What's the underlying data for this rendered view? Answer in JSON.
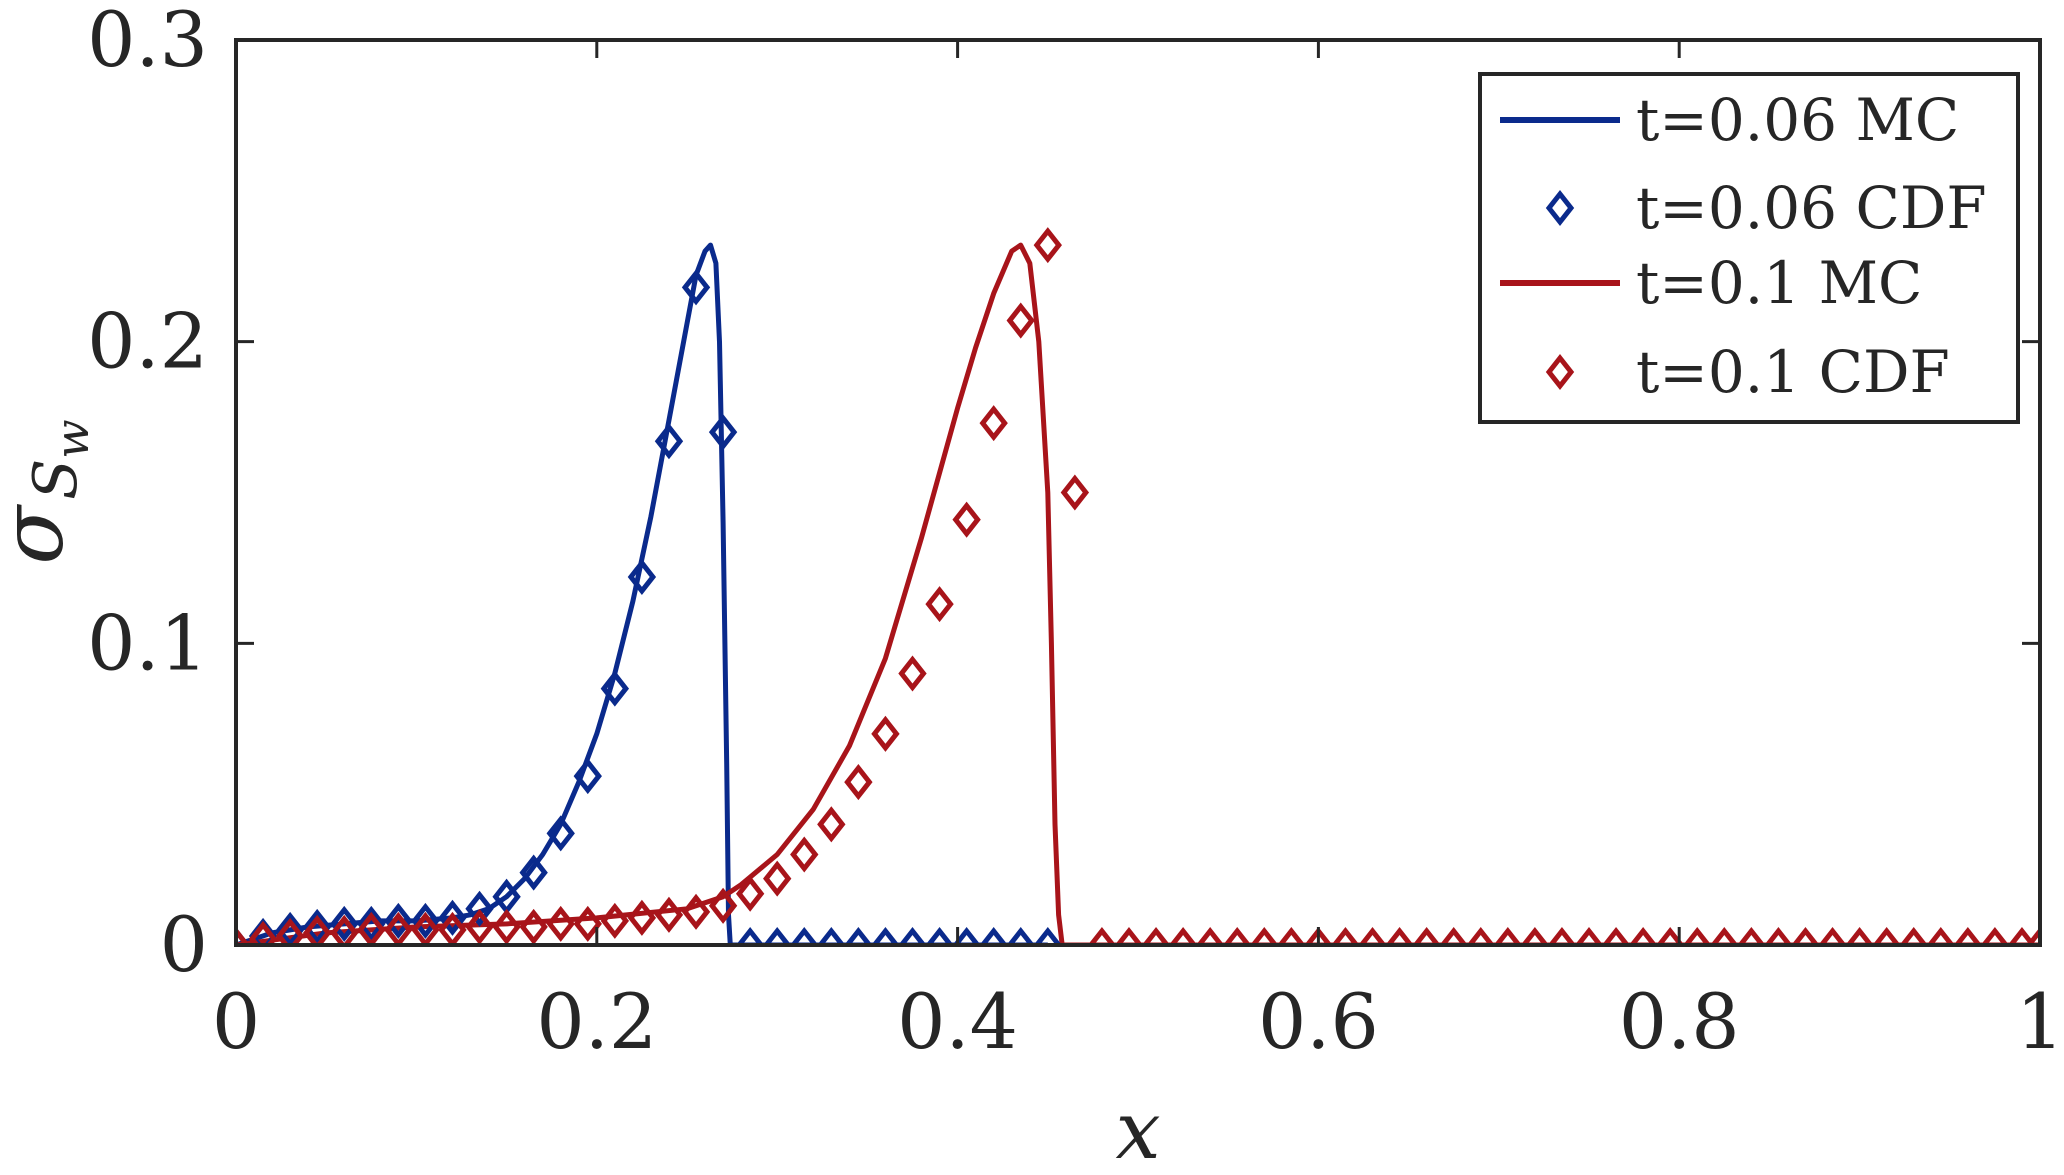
{
  "chart_data": {
    "type": "line",
    "title": "",
    "xlabel": "x",
    "ylabel_main": "σ",
    "ylabel_sub": "S",
    "ylabel_subsub": "w",
    "xlim": [
      0,
      1
    ],
    "ylim": [
      0,
      0.3
    ],
    "xticks": [
      "0",
      "0.2",
      "0.4",
      "0.6",
      "0.8",
      "1"
    ],
    "xtick_values": [
      0,
      0.2,
      0.4,
      0.6,
      0.8,
      1
    ],
    "yticks": [
      "0",
      "0.1",
      "0.2",
      "0.3"
    ],
    "ytick_values": [
      0,
      0.1,
      0.2,
      0.3
    ],
    "grid": false,
    "legend_position": "top-right",
    "colors": {
      "blue": "#0a2a8c",
      "red": "#a8141a"
    },
    "series": [
      {
        "name": "t=0.06 MC",
        "style": "line",
        "color": "#0a2a8c",
        "x": [
          0,
          0.02,
          0.04,
          0.06,
          0.08,
          0.1,
          0.12,
          0.13,
          0.14,
          0.15,
          0.16,
          0.17,
          0.18,
          0.19,
          0.2,
          0.21,
          0.22,
          0.23,
          0.24,
          0.25,
          0.255,
          0.26,
          0.263,
          0.266,
          0.268,
          0.27,
          0.272,
          0.273,
          0.274,
          0.3,
          0.35,
          0.4,
          0.45
        ],
        "y": [
          0,
          0.004,
          0.006,
          0.007,
          0.008,
          0.008,
          0.009,
          0.01,
          0.012,
          0.016,
          0.022,
          0.03,
          0.04,
          0.054,
          0.07,
          0.09,
          0.114,
          0.142,
          0.174,
          0.206,
          0.222,
          0.23,
          0.232,
          0.226,
          0.2,
          0.14,
          0.06,
          0.01,
          0,
          0,
          0,
          0,
          0
        ]
      },
      {
        "name": "t=0.06 CDF",
        "style": "marker",
        "color": "#0a2a8c",
        "x": [
          0,
          0.015,
          0.03,
          0.045,
          0.06,
          0.075,
          0.09,
          0.105,
          0.12,
          0.135,
          0.15,
          0.165,
          0.18,
          0.195,
          0.21,
          0.225,
          0.24,
          0.255,
          0.27,
          0.285,
          0.3,
          0.315,
          0.33,
          0.345,
          0.36,
          0.375,
          0.39,
          0.405,
          0.42,
          0.435,
          0.45
        ],
        "y": [
          0,
          0.003,
          0.005,
          0.006,
          0.007,
          0.007,
          0.008,
          0.008,
          0.009,
          0.012,
          0.016,
          0.024,
          0.037,
          0.056,
          0.085,
          0.122,
          0.167,
          0.218,
          0.17,
          0,
          0,
          0,
          0,
          0,
          0,
          0,
          0,
          0,
          0,
          0,
          0
        ]
      },
      {
        "name": "t=0.1 MC",
        "style": "line",
        "color": "#a8141a",
        "x": [
          0,
          0.05,
          0.1,
          0.15,
          0.2,
          0.25,
          0.27,
          0.28,
          0.3,
          0.32,
          0.34,
          0.36,
          0.38,
          0.4,
          0.41,
          0.42,
          0.43,
          0.435,
          0.44,
          0.445,
          0.45,
          0.452,
          0.454,
          0.456,
          0.458,
          0.5,
          0.6,
          0.7,
          0.8,
          0.9,
          1
        ],
        "y": [
          0,
          0.004,
          0.006,
          0.007,
          0.009,
          0.012,
          0.016,
          0.02,
          0.03,
          0.045,
          0.066,
          0.095,
          0.135,
          0.178,
          0.198,
          0.216,
          0.23,
          0.232,
          0.226,
          0.2,
          0.15,
          0.1,
          0.04,
          0.01,
          0,
          0,
          0,
          0,
          0,
          0,
          0
        ]
      },
      {
        "name": "t=0.1 CDF",
        "style": "marker",
        "color": "#a8141a",
        "x": [
          0,
          0.015,
          0.03,
          0.045,
          0.06,
          0.075,
          0.09,
          0.105,
          0.12,
          0.135,
          0.15,
          0.165,
          0.18,
          0.195,
          0.21,
          0.225,
          0.24,
          0.255,
          0.27,
          0.285,
          0.3,
          0.315,
          0.33,
          0.345,
          0.36,
          0.375,
          0.39,
          0.405,
          0.42,
          0.435,
          0.45,
          0.465,
          0.48,
          0.495,
          0.51,
          0.525,
          0.54,
          0.555,
          0.57,
          0.585,
          0.6,
          0.615,
          0.63,
          0.645,
          0.66,
          0.675,
          0.69,
          0.705,
          0.72,
          0.735,
          0.75,
          0.765,
          0.78,
          0.795,
          0.81,
          0.825,
          0.84,
          0.855,
          0.87,
          0.885,
          0.9,
          0.915,
          0.93,
          0.945,
          0.96,
          0.975,
          0.99,
          1
        ],
        "y": [
          0,
          0.002,
          0.003,
          0.004,
          0.004,
          0.005,
          0.005,
          0.005,
          0.005,
          0.006,
          0.006,
          0.006,
          0.007,
          0.007,
          0.008,
          0.009,
          0.01,
          0.011,
          0.013,
          0.017,
          0.022,
          0.03,
          0.04,
          0.054,
          0.07,
          0.09,
          0.113,
          0.141,
          0.173,
          0.207,
          0.232,
          0.15,
          0,
          0,
          0,
          0,
          0,
          0,
          0,
          0,
          0,
          0,
          0,
          0,
          0,
          0,
          0,
          0,
          0,
          0,
          0,
          0,
          0,
          0,
          0,
          0,
          0,
          0,
          0,
          0,
          0,
          0,
          0,
          0,
          0,
          0,
          0,
          0
        ]
      }
    ]
  }
}
